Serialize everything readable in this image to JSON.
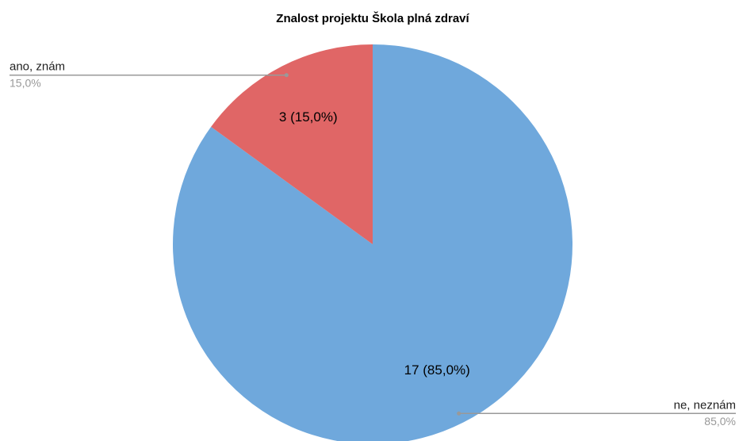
{
  "chart_data": {
    "type": "pie",
    "title": "Znalost projektu Škola plná zdraví",
    "categories": [
      "ne, neznám",
      "ano, znám"
    ],
    "values": [
      17,
      3
    ],
    "value_labels": [
      "17 (85,0%)",
      "3 (15,0%)"
    ],
    "percent_labels": [
      "85,0%",
      "15,0%"
    ],
    "colors": [
      "#6fa8dc",
      "#e06666"
    ]
  }
}
